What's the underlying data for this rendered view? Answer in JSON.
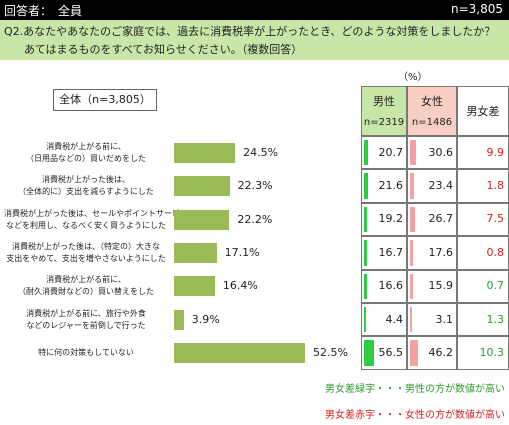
{
  "header": {
    "respondents": "回答者：　全員",
    "n": "n=3,805"
  },
  "question": {
    "line1": "Q2.あなたやあなたのご家庭では、過去に消費税率が上がったとき、どのような対策をしましたか？",
    "line2": "あてはまるものをすべてお知らせください。（複数回答）"
  },
  "unit_label": "（%）",
  "overall_label": "全体（n=3,805）",
  "table_header": {
    "male": "男性",
    "male_n": "n=2319",
    "female": "女性",
    "female_n": "n=1486",
    "diff": "男女差"
  },
  "legend": {
    "green": "男女差緑字・・・男性の方が数値が高い",
    "red": "男女差赤字・・・女性の方が数値が高い"
  },
  "chart_data": {
    "type": "bar",
    "orientation": "horizontal",
    "unit": "%",
    "categories": [
      [
        "消費税が上がる前に、",
        "（日用品などの）買いだめをした"
      ],
      [
        "消費税が上がった後は、",
        "（全体的に）支出を減らすようにした"
      ],
      [
        "消費税が上がった後は、セールやポイントサービス",
        "などを利用し、なるべく安く買うようにした"
      ],
      [
        "消費税が上がった後は、（特定の）大きな",
        "支出をやめて、支出を増やさないようにした"
      ],
      [
        "消費税が上がる前に、",
        "（耐久消費財などの）買い替えをした"
      ],
      [
        "消費税が上がる前に、旅行や外食",
        "などのレジャーを前倒しで行った"
      ],
      [
        "特に何の対策もしていない"
      ]
    ],
    "overall": [
      24.5,
      22.3,
      22.2,
      17.1,
      16.4,
      3.9,
      52.5
    ],
    "male": [
      20.7,
      21.6,
      19.2,
      16.7,
      16.6,
      4.4,
      56.5
    ],
    "female": [
      30.6,
      23.4,
      26.7,
      17.6,
      15.9,
      3.1,
      46.2
    ],
    "diff": [
      9.9,
      1.8,
      7.5,
      0.8,
      0.7,
      1.3,
      10.3
    ],
    "diff_higher": [
      "female",
      "female",
      "female",
      "female",
      "male",
      "male",
      "male"
    ],
    "colors": {
      "overall_bar": "#9bbb59",
      "male_bar": "#2ecc40",
      "female_bar": "#f4a1a1",
      "diff_male": "#2e9a2e",
      "diff_female": "#d42020"
    }
  }
}
